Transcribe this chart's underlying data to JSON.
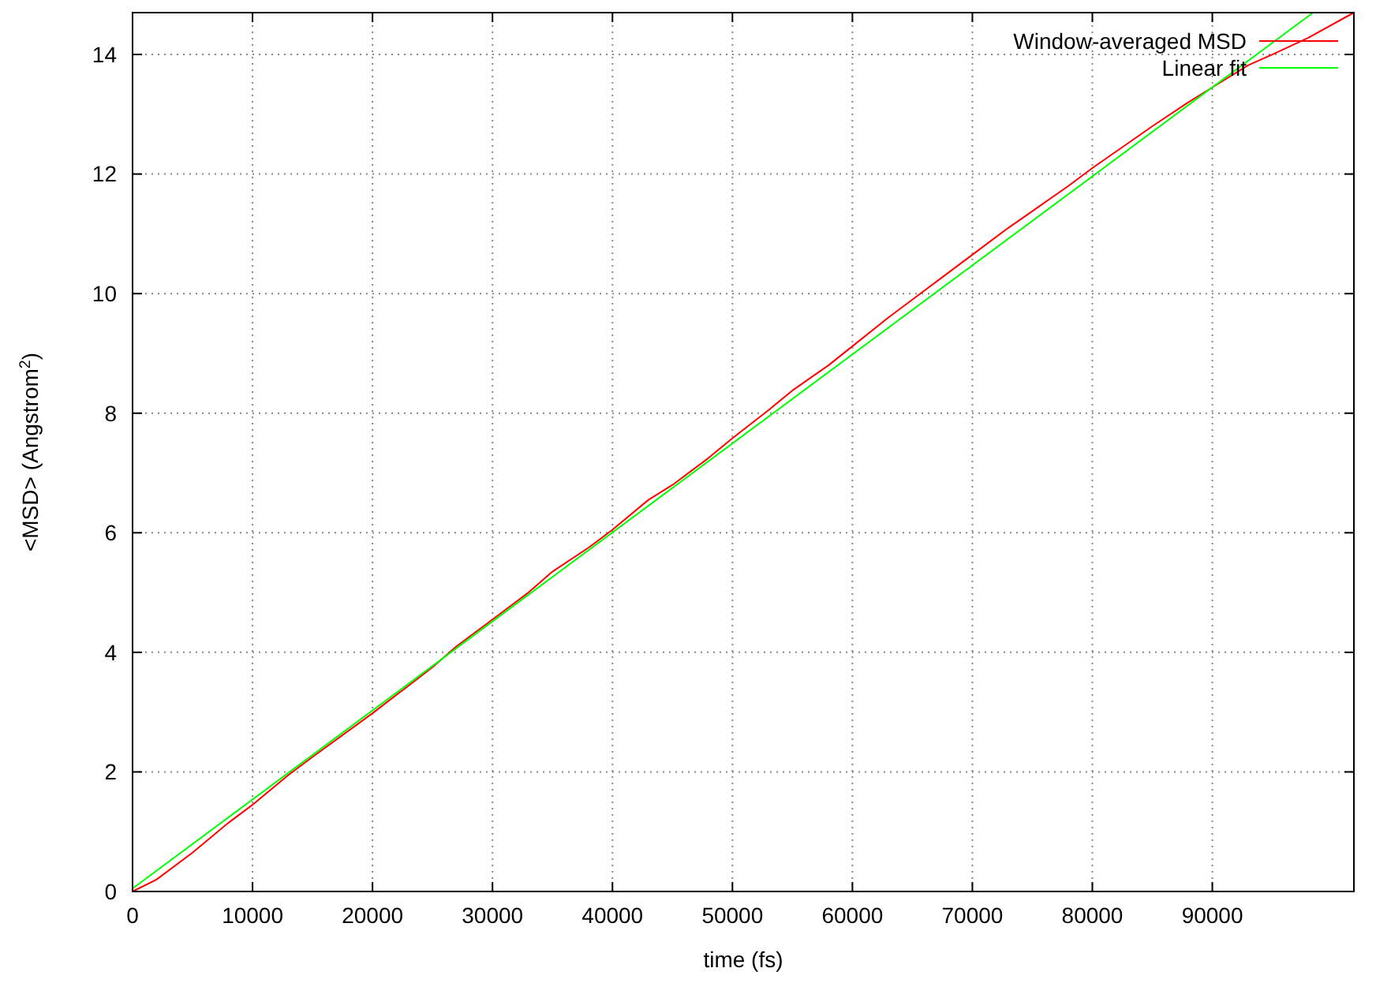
{
  "chart_data": {
    "type": "line",
    "xlabel": "time (fs)",
    "ylabel": "<MSD> (Angstrom$^{2}$)",
    "xlim": [
      0,
      101800
    ],
    "ylim": [
      0,
      14.7
    ],
    "xticks": [
      0,
      10000,
      20000,
      30000,
      40000,
      50000,
      60000,
      70000,
      80000,
      90000
    ],
    "yticks": [
      0,
      2,
      4,
      6,
      8,
      10,
      12,
      14
    ],
    "grid": true,
    "legend": "top right",
    "series": [
      {
        "name": "Window-averaged MSD",
        "color": "#ff0000",
        "x": [
          0,
          2000,
          5000,
          8000,
          10000,
          13000,
          15000,
          20000,
          25000,
          27000,
          30000,
          33000,
          35000,
          38000,
          40000,
          43000,
          45000,
          48000,
          50000,
          53000,
          55000,
          58000,
          60000,
          63000,
          65000,
          68000,
          70000,
          73000,
          75000,
          78000,
          80000,
          83000,
          85000,
          88000,
          90000,
          93000,
          95000,
          98000,
          101800
        ],
        "values": [
          0,
          0.2,
          0.65,
          1.15,
          1.45,
          1.95,
          2.25,
          2.98,
          3.75,
          4.1,
          4.55,
          5.0,
          5.35,
          5.75,
          6.05,
          6.55,
          6.8,
          7.25,
          7.58,
          8.05,
          8.38,
          8.8,
          9.12,
          9.6,
          9.9,
          10.35,
          10.65,
          11.1,
          11.38,
          11.8,
          12.1,
          12.52,
          12.8,
          13.2,
          13.45,
          13.82,
          14.0,
          14.28,
          14.7
        ]
      },
      {
        "name": "Linear fit",
        "color": "#00ff00",
        "x": [
          0,
          98400
        ],
        "values": [
          0.05,
          14.7
        ]
      }
    ]
  }
}
